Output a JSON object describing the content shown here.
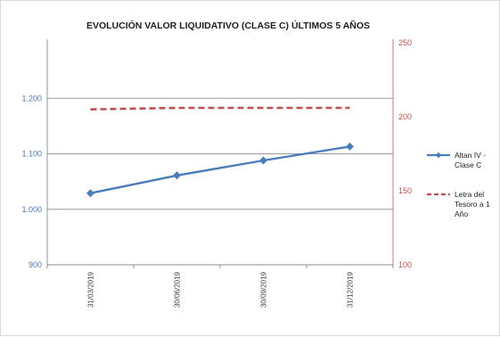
{
  "chart_data": {
    "type": "line",
    "title": "EVOLUCIÓN VALOR LIQUIDATIVO (CLASE C) ÚLTIMOS 5 AÑOS",
    "categories": [
      "31/03/2019",
      "30/06/2019",
      "30/09/2019",
      "31/12/2019"
    ],
    "series": [
      {
        "name": "Altan IV - Clase C",
        "axis": "left",
        "values": [
          1.029,
          1.061,
          1.088,
          1.113
        ],
        "color": "#4a7ebb",
        "style": "solid",
        "marker": "diamond"
      },
      {
        "name": "Letra del Tesoro a 1 Año",
        "axis": "right",
        "values": [
          205,
          206,
          206,
          206
        ],
        "color": "#c0504d",
        "style": "dashed",
        "marker": "none"
      }
    ],
    "y_left": {
      "min": 900,
      "max": 1300,
      "ticks": [
        "900",
        "1.000",
        "1.100",
        "1.200"
      ],
      "tick_values": [
        0.9,
        1.0,
        1.1,
        1.2
      ],
      "range": [
        0.9,
        1.3
      ]
    },
    "y_right": {
      "ticks": [
        "100",
        "150",
        "200",
        "250"
      ],
      "tick_values": [
        100,
        150,
        200,
        250
      ],
      "range": [
        100,
        250
      ]
    },
    "gridlines": true,
    "legend_position": "right"
  }
}
